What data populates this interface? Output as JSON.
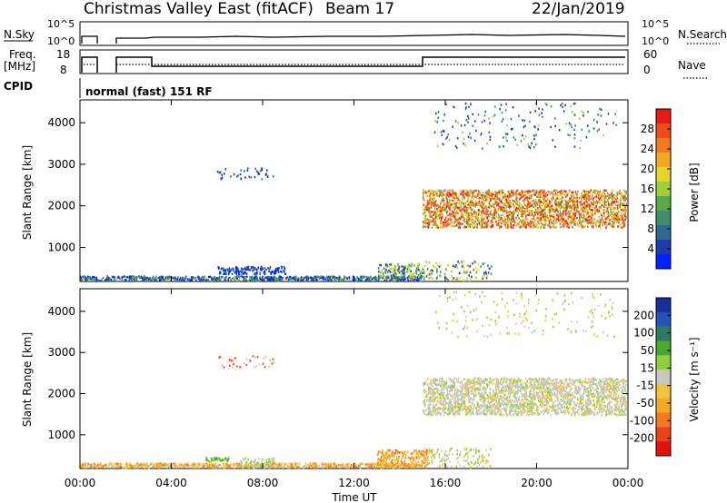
{
  "header": {
    "station": "Christmas Valley East (fitACF)",
    "beam": "Beam 17",
    "date": "22/Jan/2019"
  },
  "top_panels": {
    "nsky_label": "N.Sky",
    "nsearch_label": "N.Search",
    "nsky_ticks": [
      "10^5",
      "10^0"
    ],
    "nsearch_ticks": [
      "10^5",
      "10^0"
    ],
    "freq_label_1": "Freq.",
    "freq_label_2": "[MHz]",
    "freq_ticks": [
      "18",
      "8"
    ],
    "nave_label": "Nave",
    "nave_ticks": [
      "60",
      "0"
    ],
    "cpid_label": "CPID",
    "cpid_text": "normal (fast) 151 RF"
  },
  "chart_data": [
    {
      "type": "heatmap",
      "panel": "power",
      "ylabel": "Slant Range [km]",
      "ylim": [
        180,
        4550
      ],
      "y_ticks": [
        "1000",
        "2000",
        "3000",
        "4000"
      ],
      "x_ticks": [
        "00:00",
        "04:00",
        "08:00",
        "12:00",
        "16:00",
        "20:00",
        "00:00"
      ],
      "colorbar_label": "Power [dB]",
      "colorbar_ticks": [
        "4",
        "8",
        "12",
        "16",
        "20",
        "24",
        "28"
      ],
      "colors": [
        "#0020ff",
        "#1e3ca8",
        "#2e6a8e",
        "#3f8f6a",
        "#5aa84a",
        "#9ccf3a",
        "#e8d52a",
        "#f5a623",
        "#f47a1f",
        "#ef4a1a",
        "#e51c14"
      ]
    },
    {
      "type": "heatmap",
      "panel": "velocity",
      "ylabel": "Slant Range [km]",
      "xlabel": "Time UT",
      "ylim": [
        180,
        4550
      ],
      "y_ticks": [
        "1000",
        "2000",
        "3000",
        "4000"
      ],
      "x_ticks": [
        "00:00",
        "04:00",
        "08:00",
        "12:00",
        "16:00",
        "20:00",
        "00:00"
      ],
      "colorbar_label": "Velocity [m s⁻¹]",
      "colorbar_ticks": [
        "200",
        "100",
        "50",
        "15",
        "-15",
        "-50",
        "-100",
        "-200"
      ],
      "colors": [
        "#1a2ea0",
        "#2452b8",
        "#2f7a5e",
        "#4aa832",
        "#8fcf3a",
        "#c8c8c0",
        "#f2c33c",
        "#f5a623",
        "#f47a1f",
        "#ee4318",
        "#e0140f"
      ]
    }
  ]
}
